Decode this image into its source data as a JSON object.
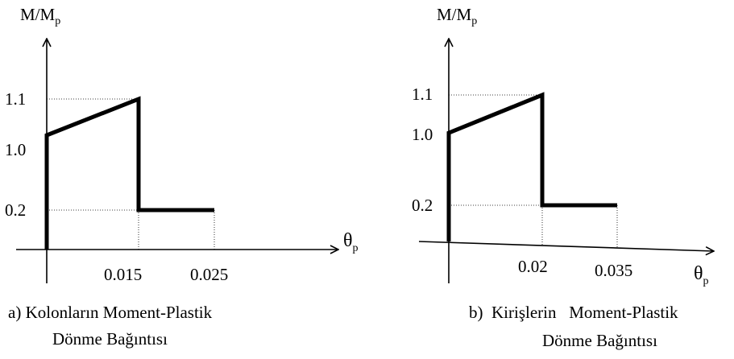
{
  "chart_data": [
    {
      "type": "line",
      "ylabel": {
        "main": "M/M",
        "sub": "p"
      },
      "xlabel": {
        "main": "θ",
        "sub": "p"
      },
      "yticks": [
        "1.1",
        "1.0",
        "0.2"
      ],
      "xticks": [
        "0.015",
        "0.025"
      ],
      "series": [
        {
          "x": [
            0,
            0,
            0.015,
            0.015,
            0.025
          ],
          "y": [
            0,
            1.0,
            1.1,
            0.2,
            0.2
          ]
        }
      ],
      "caption": {
        "line1": "a) Kolonların Moment-Plastik",
        "line2": "Dönme Bağıntısı"
      }
    },
    {
      "type": "line",
      "ylabel": {
        "main": "M/M",
        "sub": "p"
      },
      "xlabel": {
        "main": "θ",
        "sub": "p"
      },
      "yticks": [
        "1.1",
        "1.0",
        "0.2"
      ],
      "xticks": [
        "0.02",
        "0.035"
      ],
      "series": [
        {
          "x": [
            0,
            0,
            0.02,
            0.02,
            0.035
          ],
          "y": [
            0,
            1.0,
            1.1,
            0.2,
            0.2
          ]
        }
      ],
      "caption": {
        "line1": "b)  Kirişlerin   Moment-Plastik",
        "line2": "Dönme Bağıntısı"
      }
    }
  ]
}
